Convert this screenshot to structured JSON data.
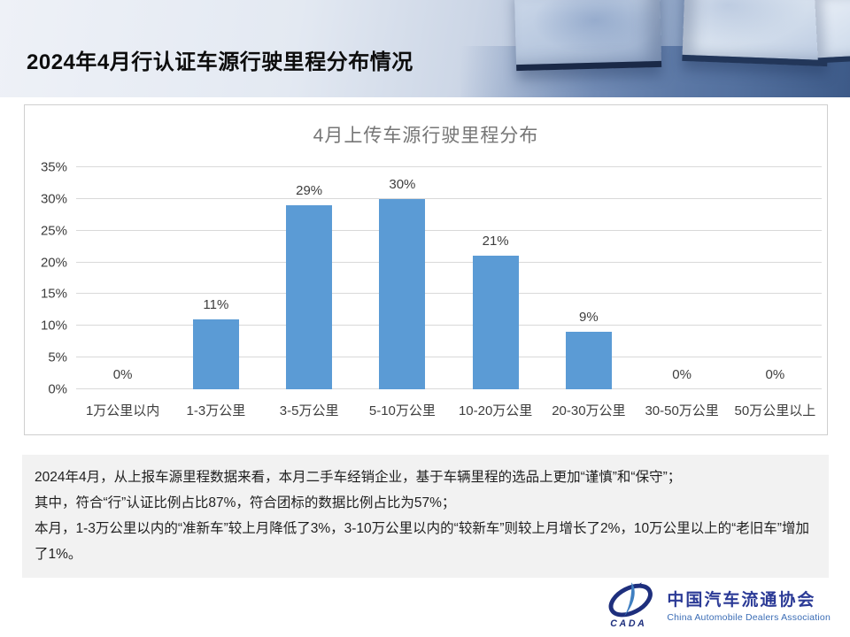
{
  "header": {
    "title": "2024年4月行认证车源行驶里程分布情况"
  },
  "chart_data": {
    "type": "bar",
    "title": "4月上传车源行驶里程分布",
    "categories": [
      "1万公里以内",
      "1-3万公里",
      "3-5万公里",
      "5-10万公里",
      "10-20万公里",
      "20-30万公里",
      "30-50万公里",
      "50万公里以上"
    ],
    "values": [
      0,
      11,
      29,
      30,
      21,
      9,
      0,
      0
    ],
    "value_labels": [
      "0%",
      "11%",
      "29%",
      "30%",
      "21%",
      "9%",
      "0%",
      "0%"
    ],
    "xlabel": "",
    "ylabel": "",
    "ylim": [
      0,
      35
    ],
    "ytick_step": 5,
    "ytick_suffix": "%",
    "grid": true,
    "legend": false,
    "bar_color": "#5B9BD5"
  },
  "notes": {
    "lines": [
      "2024年4月，从上报车源里程数据来看，本月二手车经销企业，基于车辆里程的选品上更加“谨慎”和“保守”；",
      "其中，符合“行”认证比例占比87%，符合团标的数据比例占比为57%；",
      "本月，1-3万公里以内的“准新车”较上月降低了3%，3-10万公里以内的“较新车”则较上月增长了2%，10万公里以上的“老旧车”增加了1%。"
    ]
  },
  "logo": {
    "emblem_text": "CADA",
    "name_cn": "中国汽车流通协会",
    "name_en": "China Automobile Dealers Association"
  },
  "colors": {
    "bar_blue": "#5B9BD5",
    "gridline": "#D9D9D9",
    "notes_bg": "#F2F2F2",
    "logo_navy": "#1E2F7D",
    "logo_blue": "#3F7FC1"
  }
}
